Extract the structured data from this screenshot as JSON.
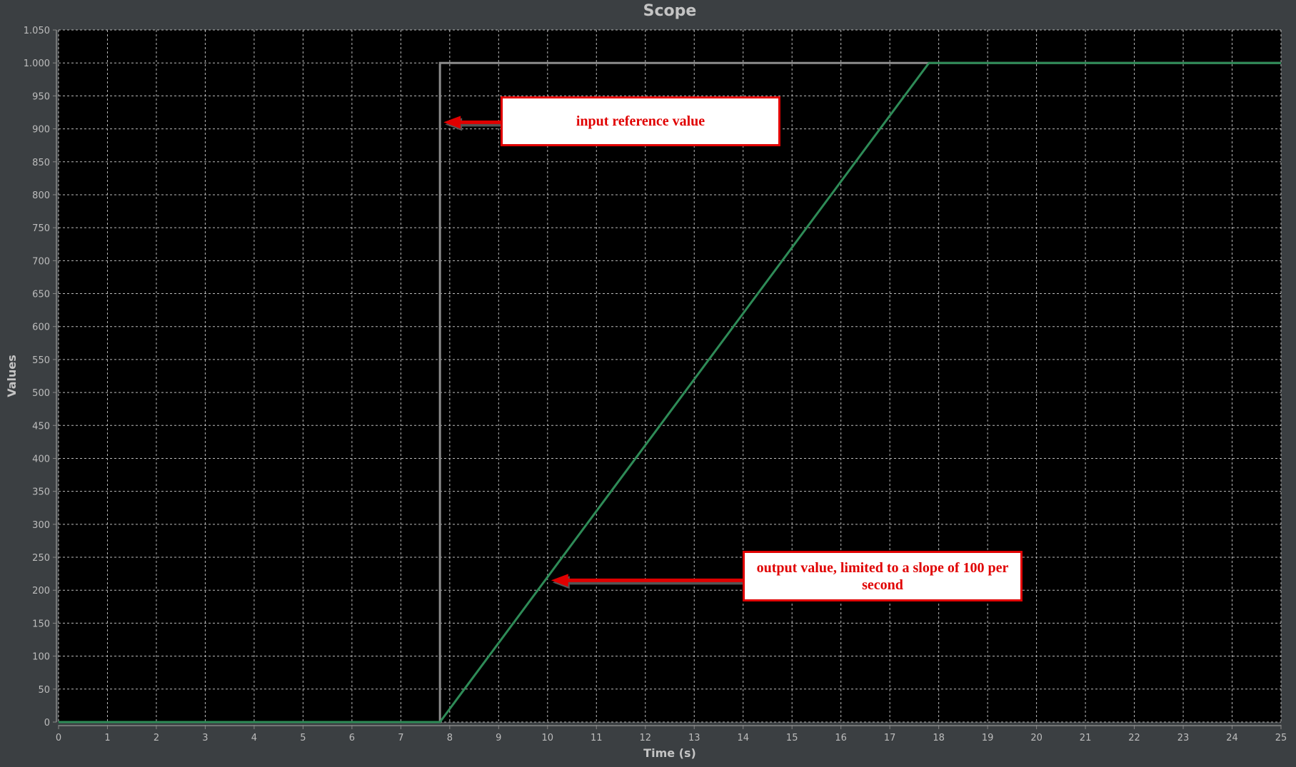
{
  "chart_data": {
    "type": "line",
    "title": "Scope",
    "xlabel": "Time (s)",
    "ylabel": "Values",
    "xlim": [
      0,
      25
    ],
    "ylim": [
      0,
      1050
    ],
    "xticks": [
      0,
      1,
      2,
      3,
      4,
      5,
      6,
      7,
      8,
      9,
      10,
      11,
      12,
      13,
      14,
      15,
      16,
      17,
      18,
      19,
      20,
      21,
      22,
      23,
      24,
      25
    ],
    "yticks": [
      0,
      50,
      100,
      150,
      200,
      250,
      300,
      350,
      400,
      450,
      500,
      550,
      600,
      650,
      700,
      750,
      800,
      850,
      900,
      950,
      1000,
      1050
    ],
    "ytick_labels": [
      "0",
      "50",
      "100",
      "150",
      "200",
      "250",
      "300",
      "350",
      "400",
      "450",
      "500",
      "550",
      "600",
      "650",
      "700",
      "750",
      "800",
      "850",
      "900",
      "950",
      "1.000",
      "1.050"
    ],
    "grid": true,
    "background": "#000000",
    "series": [
      {
        "color": "#8c8c8c",
        "x": [
          0,
          7.8,
          7.8,
          25
        ],
        "y": [
          0,
          0,
          1000,
          1000
        ]
      },
      {
        "color": "#2e8b57",
        "x": [
          0,
          7.8,
          17.8,
          25
        ],
        "y": [
          0,
          0,
          1000,
          1000
        ]
      }
    ],
    "annotations": [
      {
        "text": "input reference value",
        "points_to": [
          7.8,
          910
        ],
        "color": "#e00000"
      },
      {
        "text": "output value, limited to a slope of 100 per second",
        "points_to": [
          10,
          215
        ],
        "color": "#e00000"
      }
    ]
  }
}
